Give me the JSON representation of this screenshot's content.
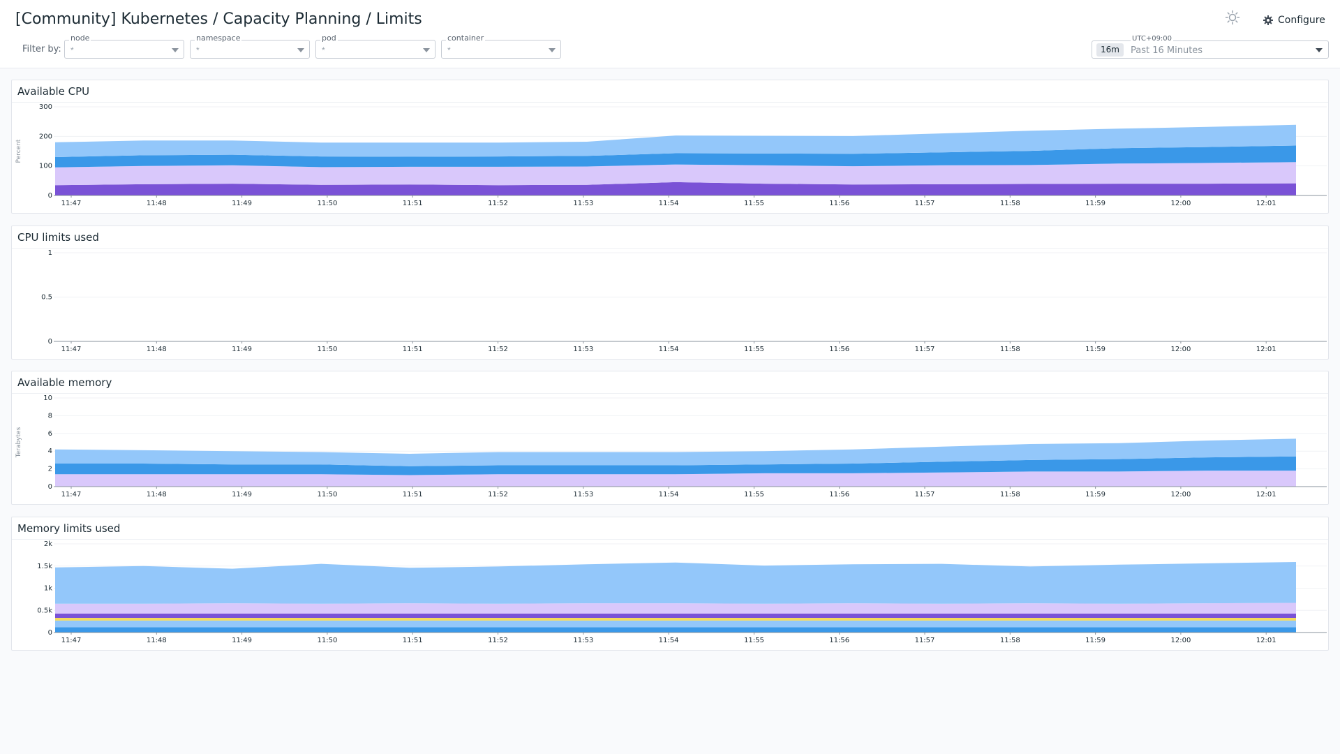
{
  "header": {
    "title": "[Community] Kubernetes / Capacity Planning / Limits",
    "filter_label": "Filter by:",
    "filters": [
      {
        "label": "node",
        "value": "*"
      },
      {
        "label": "namespace",
        "value": "*"
      },
      {
        "label": "pod",
        "value": "*"
      },
      {
        "label": "container",
        "value": "*"
      }
    ],
    "theme_icon": "sun-icon",
    "configure_icon": "gear-icon",
    "configure_label": "Configure",
    "time": {
      "timezone": "UTC+09:00",
      "badge": "16m",
      "range": "Past 16 Minutes"
    }
  },
  "panels": [
    {
      "title": "Available CPU"
    },
    {
      "title": "CPU limits used"
    },
    {
      "title": "Available memory"
    },
    {
      "title": "Memory limits used"
    }
  ],
  "colors": {
    "light_blue": "#93c7fa",
    "blue": "#3a98e8",
    "lavender": "#d9c8fb",
    "purple": "#7a52d6",
    "yellow": "#f4d95c"
  },
  "chart_data": [
    {
      "type": "area",
      "title": "Available CPU",
      "ylabel": "Percent",
      "ylim": [
        0,
        300
      ],
      "yticks": [
        "0",
        "100",
        "200",
        "300"
      ],
      "categories": [
        "11:47",
        "11:48",
        "11:49",
        "11:50",
        "11:51",
        "11:52",
        "11:53",
        "11:54",
        "11:55",
        "11:56",
        "11:57",
        "11:58",
        "11:59",
        "12:00",
        "12:01"
      ],
      "series": [
        {
          "values": [
            35,
            38,
            40,
            36,
            37,
            35,
            36,
            45,
            40,
            37,
            38,
            39,
            40,
            40,
            41
          ]
        },
        {
          "values": [
            60,
            62,
            62,
            60,
            60,
            62,
            62,
            60,
            62,
            62,
            64,
            64,
            68,
            70,
            72
          ]
        },
        {
          "values": [
            35,
            36,
            36,
            36,
            34,
            35,
            36,
            38,
            40,
            42,
            44,
            48,
            52,
            54,
            56
          ]
        },
        {
          "values": [
            50,
            50,
            48,
            47,
            48,
            47,
            48,
            60,
            60,
            60,
            64,
            68,
            66,
            68,
            70
          ]
        }
      ]
    },
    {
      "type": "line",
      "title": "CPU limits used",
      "ylim": [
        0,
        1
      ],
      "yticks": [
        "0",
        "0.5",
        "1"
      ],
      "categories": [
        "11:47",
        "11:48",
        "11:49",
        "11:50",
        "11:51",
        "11:52",
        "11:53",
        "11:54",
        "11:55",
        "11:56",
        "11:57",
        "11:58",
        "11:59",
        "12:00",
        "12:01"
      ],
      "series": []
    },
    {
      "type": "area",
      "title": "Available memory",
      "ylabel": "Terabytes",
      "ylim": [
        0,
        10
      ],
      "yticks": [
        "0",
        "2",
        "4",
        "6",
        "8",
        "10"
      ],
      "categories": [
        "11:47",
        "11:48",
        "11:49",
        "11:50",
        "11:51",
        "11:52",
        "11:53",
        "11:54",
        "11:55",
        "11:56",
        "11:57",
        "11:58",
        "11:59",
        "12:00",
        "12:01"
      ],
      "series": [
        {
          "values": [
            1.4,
            1.4,
            1.4,
            1.4,
            1.3,
            1.4,
            1.4,
            1.4,
            1.5,
            1.5,
            1.6,
            1.7,
            1.7,
            1.8,
            1.8
          ]
        },
        {
          "values": [
            1.2,
            1.2,
            1.1,
            1.1,
            1.0,
            1.0,
            1.0,
            1.0,
            1.0,
            1.1,
            1.2,
            1.3,
            1.4,
            1.5,
            1.6
          ]
        },
        {
          "values": [
            1.6,
            1.5,
            1.5,
            1.4,
            1.4,
            1.5,
            1.5,
            1.5,
            1.5,
            1.6,
            1.7,
            1.8,
            1.8,
            1.9,
            2.0
          ]
        }
      ]
    },
    {
      "type": "area",
      "title": "Memory limits used",
      "ylim": [
        0,
        2000
      ],
      "yticks": [
        "0",
        "0.5k",
        "1k",
        "1.5k",
        "2k"
      ],
      "categories": [
        "11:47",
        "11:48",
        "11:49",
        "11:50",
        "11:51",
        "11:52",
        "11:53",
        "11:54",
        "11:55",
        "11:56",
        "11:57",
        "11:58",
        "11:59",
        "12:00",
        "12:01"
      ],
      "series": [
        {
          "values": [
            120,
            120,
            120,
            120,
            120,
            120,
            120,
            120,
            120,
            120,
            120,
            120,
            120,
            120,
            120
          ]
        },
        {
          "values": [
            150,
            150,
            150,
            150,
            150,
            150,
            150,
            150,
            150,
            150,
            150,
            150,
            150,
            150,
            150
          ]
        },
        {
          "values": [
            60,
            60,
            60,
            60,
            60,
            60,
            60,
            60,
            60,
            60,
            60,
            60,
            60,
            60,
            60
          ]
        },
        {
          "values": [
            100,
            100,
            100,
            100,
            100,
            100,
            100,
            100,
            100,
            100,
            100,
            100,
            100,
            100,
            100
          ]
        },
        {
          "values": [
            220,
            220,
            230,
            220,
            230,
            220,
            230,
            230,
            220,
            230,
            220,
            230,
            220,
            230,
            240
          ]
        },
        {
          "values": [
            820,
            850,
            780,
            900,
            800,
            840,
            880,
            920,
            860,
            880,
            900,
            830,
            880,
            900,
            920
          ]
        }
      ]
    }
  ]
}
